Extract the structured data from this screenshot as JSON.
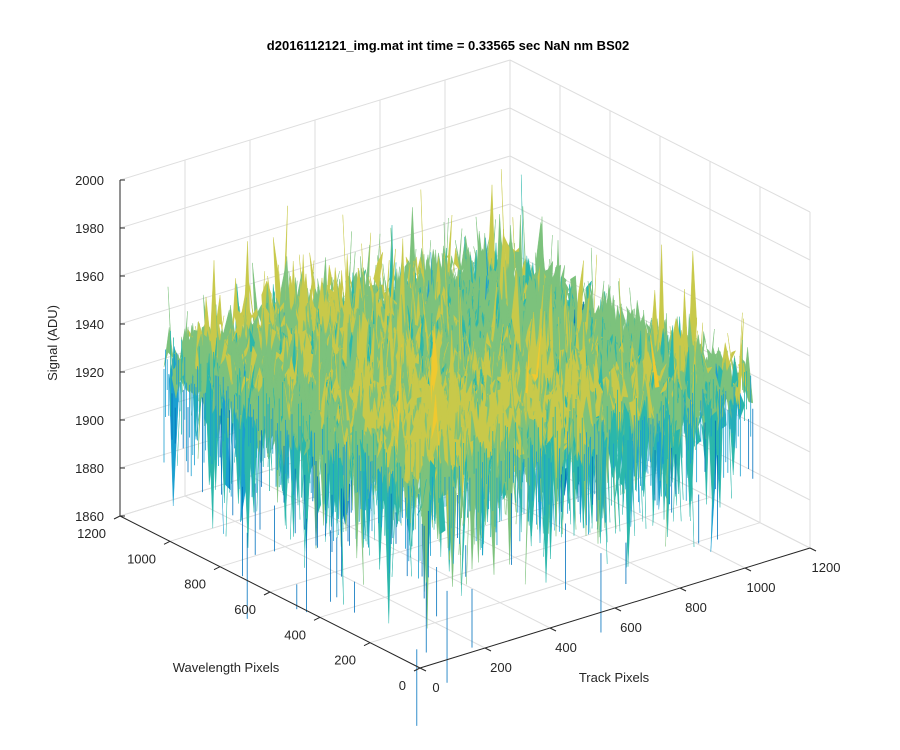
{
  "chart_data": {
    "type": "surface",
    "title": "d2016112121_img.mat int time = 0.33565 sec  NaN nm BS02",
    "xlabel": "Track Pixels",
    "ylabel": "Wavelength Pixels",
    "zlabel": "Signal (ADU)",
    "x_ticks": [
      "0",
      "200",
      "400",
      "600",
      "800",
      "1000",
      "1200"
    ],
    "y_ticks": [
      "0",
      "200",
      "400",
      "600",
      "800",
      "1000",
      "1200"
    ],
    "z_ticks": [
      "1860",
      "1880",
      "1900",
      "1920",
      "1940",
      "1960",
      "1980",
      "2000"
    ],
    "xlim": [
      0,
      1200
    ],
    "ylim": [
      0,
      1200
    ],
    "zlim": [
      1860,
      2000
    ],
    "data_extent": {
      "x": [
        0,
        1024
      ],
      "y": [
        0,
        1024
      ]
    },
    "signal": {
      "mean_approx": 1935,
      "min_approx": 1865,
      "max_approx": 1990
    },
    "colormap": [
      "#0072bd",
      "#1a9fd0",
      "#2bb7ab",
      "#7cc27c",
      "#c8c94a",
      "#f0c92f"
    ],
    "grid": true,
    "view": "3d-isometric"
  }
}
